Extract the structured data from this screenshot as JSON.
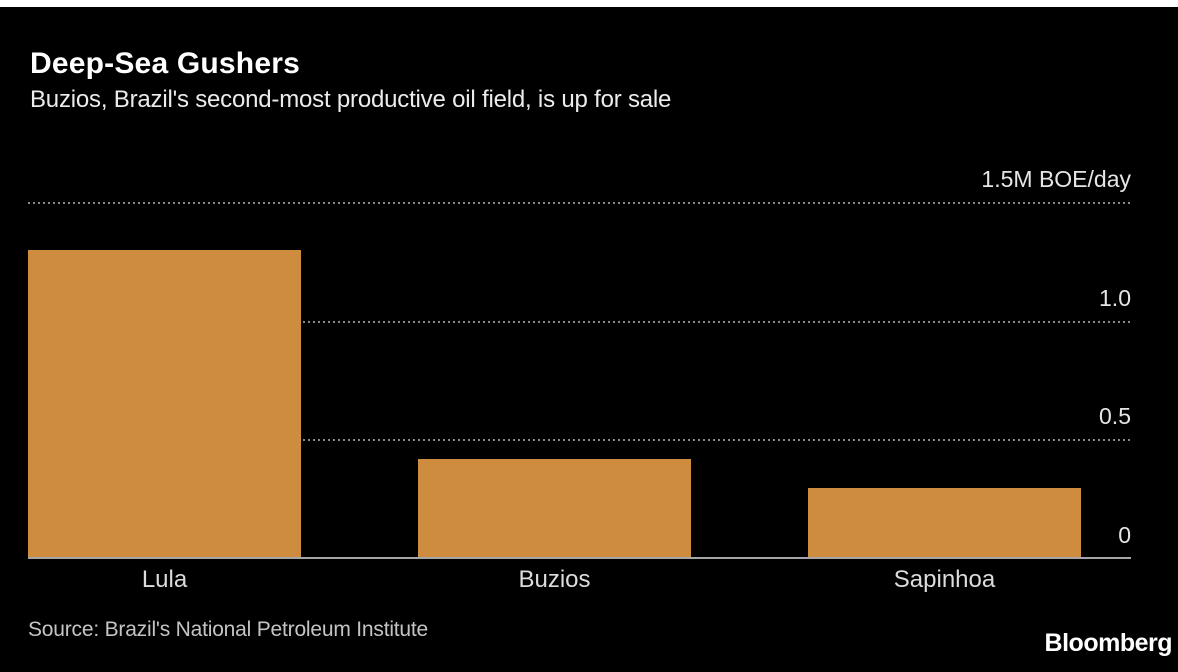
{
  "chart_data": {
    "type": "bar",
    "title": "Deep-Sea Gushers",
    "subtitle": "Buzios, Brazil's second-most productive oil field, is up for sale",
    "categories": [
      "Lula",
      "Buzios",
      "Sapinhoa"
    ],
    "values": [
      1.3,
      0.42,
      0.3
    ],
    "xlabel": "",
    "ylabel": "",
    "ylim": [
      0,
      1.5
    ],
    "yticks": [
      {
        "value": 1.5,
        "label": "1.5M BOE/day"
      },
      {
        "value": 1.0,
        "label": "1.0"
      },
      {
        "value": 0.5,
        "label": "0.5"
      },
      {
        "value": 0,
        "label": "0"
      }
    ],
    "grid": "horizontal-dotted",
    "legend": "none",
    "colors": {
      "background": "#000000",
      "top_strip": "#ffffff",
      "bar": "#ce8c3e",
      "title_text": "#ffffff",
      "subtitle_text": "#ececec",
      "tick_text": "#e5e5e5",
      "category_text": "#dcdcdc",
      "source_text": "#c4c4c4",
      "gridline": "#8a8a8a",
      "axis_line": "#a6a6a6"
    }
  },
  "footer": {
    "source": "Source: Brazil's National Petroleum Institute",
    "brand": "Bloomberg"
  }
}
